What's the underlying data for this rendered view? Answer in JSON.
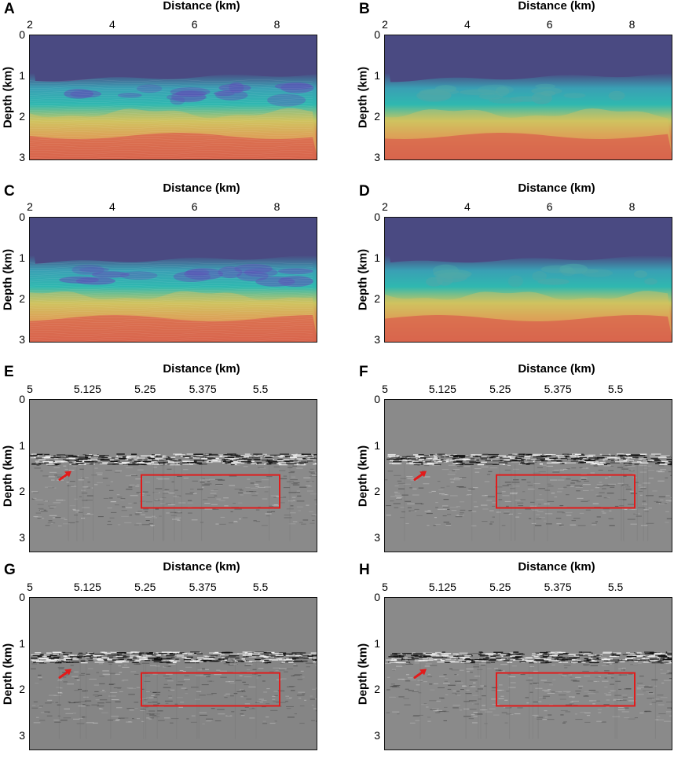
{
  "figure": {
    "panels": [
      {
        "label": "A",
        "kind": "velocity",
        "variant": "smooth-blocky",
        "xlabel": "Distance (km)",
        "ylabel": "Depth (km)",
        "xticks": [
          "2",
          "4",
          "6",
          "8"
        ],
        "yticks": [
          "0",
          "1",
          "2",
          "3"
        ]
      },
      {
        "label": "B",
        "kind": "velocity",
        "variant": "smooth",
        "xlabel": "Distance (km)",
        "ylabel": "Depth (km)",
        "xticks": [
          "2",
          "4",
          "6",
          "8"
        ],
        "yticks": [
          "0",
          "1",
          "2",
          "3"
        ]
      },
      {
        "label": "C",
        "kind": "velocity",
        "variant": "layered",
        "xlabel": "Distance (km)",
        "ylabel": "Depth (km)",
        "xticks": [
          "2",
          "4",
          "6",
          "8"
        ],
        "yticks": [
          "0",
          "1",
          "2",
          "3"
        ]
      },
      {
        "label": "D",
        "kind": "velocity",
        "variant": "smooth",
        "xlabel": "Distance (km)",
        "ylabel": "Depth (km)",
        "xticks": [
          "2",
          "4",
          "6",
          "8"
        ],
        "yticks": [
          "0",
          "1",
          "2",
          "3"
        ]
      },
      {
        "label": "E",
        "kind": "image",
        "xlabel": "Distance (km)",
        "ylabel": "Depth (km)",
        "xticks": [
          "5",
          "5.125",
          "5.25",
          "5.375",
          "5.5"
        ],
        "yticks": [
          "0",
          "1",
          "2",
          "3"
        ]
      },
      {
        "label": "F",
        "kind": "image",
        "xlabel": "Distance (km)",
        "ylabel": "Depth (km)",
        "xticks": [
          "5",
          "5.125",
          "5.25",
          "5.375",
          "5.5"
        ],
        "yticks": [
          "0",
          "1",
          "2",
          "3"
        ]
      },
      {
        "label": "G",
        "kind": "image",
        "xlabel": "Distance (km)",
        "ylabel": "Depth (km)",
        "xticks": [
          "5",
          "5.125",
          "5.25",
          "5.375",
          "5.5"
        ],
        "yticks": [
          "0",
          "1",
          "2",
          "3"
        ]
      },
      {
        "label": "H",
        "kind": "image",
        "xlabel": "Distance (km)",
        "ylabel": "Depth (km)",
        "xticks": [
          "5",
          "5.125",
          "5.25",
          "5.375",
          "5.5"
        ],
        "yticks": [
          "0",
          "1",
          "2",
          "3"
        ]
      }
    ],
    "colors": {
      "velocity_low": "#4a4a82",
      "velocity_mid": "#2fb8b0",
      "velocity_high": "#d9504a",
      "gray_bg": "#8a8a8a",
      "highlight_box": "#e21b1b",
      "arrow": "#e21b1b"
    }
  }
}
